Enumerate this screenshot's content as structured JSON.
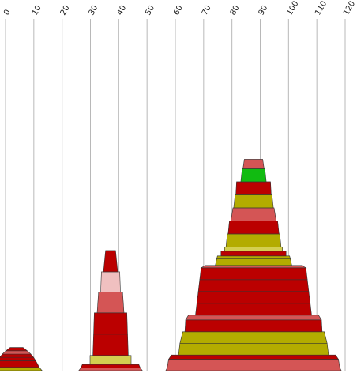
{
  "chart_data": {
    "type": "bar",
    "title": "",
    "xlabel": "",
    "ylabel": "",
    "xlim": [
      0,
      120
    ],
    "x_ticks": [
      "0",
      "10",
      "20",
      "30",
      "40",
      "50",
      "60",
      "70",
      "80",
      "90",
      "100",
      "110",
      "120"
    ],
    "grid": true,
    "palette": {
      "dark_red": "#bb0000",
      "salmon": "#d45555",
      "olive": "#b3ac00",
      "light_olive": "#d3cf50",
      "pink": "#f0c0c0",
      "green": "#11bb11"
    },
    "stacks": [
      {
        "segments": [
          {
            "bottom_width": 18.0,
            "top_width": 16.0,
            "height": 1.4,
            "color": "olive"
          },
          {
            "bottom_width": 16.0,
            "top_width": 14.8,
            "height": 1.4,
            "color": "dark_red"
          },
          {
            "bottom_width": 14.8,
            "top_width": 13.5,
            "height": 1.4,
            "color": "dark_red"
          },
          {
            "bottom_width": 13.5,
            "top_width": 12.0,
            "height": 1.4,
            "color": "dark_red"
          },
          {
            "bottom_width": 12.0,
            "top_width": 10.0,
            "height": 1.4,
            "color": "dark_red"
          },
          {
            "bottom_width": 10.0,
            "top_width": 7.5,
            "height": 1.4,
            "color": "salmon"
          },
          {
            "bottom_width": 7.5,
            "top_width": 4.5,
            "height": 1.4,
            "color": "dark_red"
          }
        ]
      },
      {
        "segments": [
          {
            "bottom_width": 22.5,
            "top_width": 21.0,
            "height": 1.2,
            "color": "salmon"
          },
          {
            "bottom_width": 21.0,
            "top_width": 20.0,
            "height": 1.4,
            "color": "dark_red"
          },
          {
            "bottom_width": 14.5,
            "top_width": 14.5,
            "height": 3.8,
            "color": "light_olive"
          },
          {
            "bottom_width": 12.5,
            "top_width": 12.0,
            "height": 9.0,
            "color": "dark_red"
          },
          {
            "bottom_width": 12.0,
            "top_width": 11.5,
            "height": 9.0,
            "color": "dark_red"
          },
          {
            "bottom_width": 9.5,
            "top_width": 8.5,
            "height": 8.8,
            "color": "salmon"
          },
          {
            "bottom_width": 7.0,
            "top_width": 6.5,
            "height": 8.5,
            "color": "pink"
          },
          {
            "bottom_width": 5.0,
            "top_width": 3.5,
            "height": 9.0,
            "color": "dark_red"
          }
        ]
      },
      {
        "segments": [
          {
            "bottom_width": 62.0,
            "top_width": 61.0,
            "height": 1.2,
            "color": "salmon"
          },
          {
            "bottom_width": 61.0,
            "top_width": 60.0,
            "height": 3.6,
            "color": "salmon"
          },
          {
            "bottom_width": 60.0,
            "top_width": 58.0,
            "height": 1.8,
            "color": "dark_red"
          },
          {
            "bottom_width": 53.0,
            "top_width": 52.0,
            "height": 4.9,
            "color": "olive"
          },
          {
            "bottom_width": 52.0,
            "top_width": 50.0,
            "height": 4.9,
            "color": "olive"
          },
          {
            "bottom_width": 48.5,
            "top_width": 48.0,
            "height": 5.0,
            "color": "dark_red"
          },
          {
            "bottom_width": 48.0,
            "top_width": 46.0,
            "height": 2.0,
            "color": "salmon"
          },
          {
            "bottom_width": 41.0,
            "top_width": 40.0,
            "height": 5.0,
            "color": "dark_red"
          },
          {
            "bottom_width": 40.0,
            "top_width": 39.0,
            "height": 5.0,
            "color": "dark_red"
          },
          {
            "bottom_width": 39.0,
            "top_width": 38.0,
            "height": 5.0,
            "color": "dark_red"
          },
          {
            "bottom_width": 38.0,
            "top_width": 37.0,
            "height": 5.0,
            "color": "dark_red"
          },
          {
            "bottom_width": 37.0,
            "top_width": 34.0,
            "height": 1.0,
            "color": "salmon"
          },
          {
            "bottom_width": 27.0,
            "top_width": 26.5,
            "height": 1.4,
            "color": "olive"
          },
          {
            "bottom_width": 26.5,
            "top_width": 26.0,
            "height": 1.3,
            "color": "olive"
          },
          {
            "bottom_width": 26.0,
            "top_width": 25.5,
            "height": 1.3,
            "color": "olive"
          },
          {
            "bottom_width": 23.0,
            "top_width": 23.0,
            "height": 2.0,
            "color": "dark_red"
          },
          {
            "bottom_width": 20.5,
            "top_width": 20.5,
            "height": 1.8,
            "color": "light_olive"
          },
          {
            "bottom_width": 19.5,
            "top_width": 18.5,
            "height": 5.5,
            "color": "olive"
          },
          {
            "bottom_width": 18.0,
            "top_width": 17.0,
            "height": 5.5,
            "color": "dark_red"
          },
          {
            "bottom_width": 16.0,
            "top_width": 14.5,
            "height": 5.5,
            "color": "salmon"
          },
          {
            "bottom_width": 14.0,
            "top_width": 13.0,
            "height": 5.5,
            "color": "olive"
          },
          {
            "bottom_width": 12.5,
            "top_width": 12.0,
            "height": 5.5,
            "color": "dark_red"
          },
          {
            "bottom_width": 9.0,
            "top_width": 8.0,
            "height": 5.5,
            "color": "green"
          },
          {
            "bottom_width": 7.5,
            "top_width": 6.5,
            "height": 4.0,
            "color": "salmon"
          }
        ]
      }
    ]
  }
}
